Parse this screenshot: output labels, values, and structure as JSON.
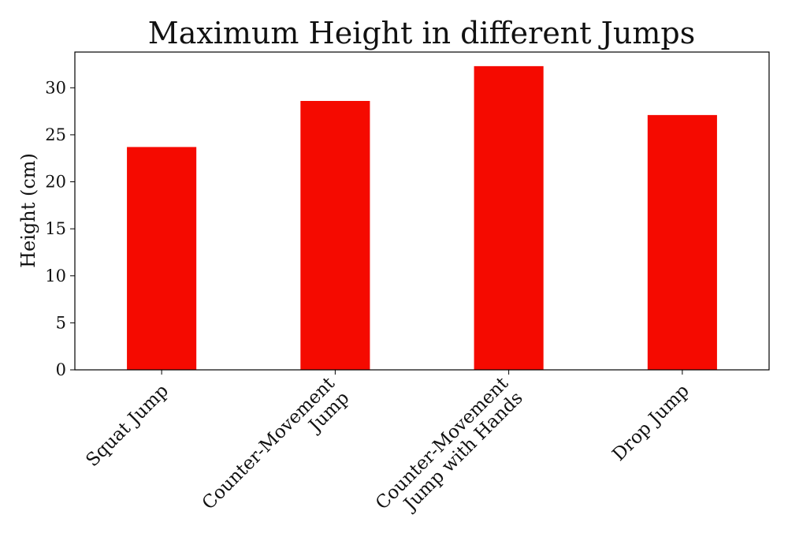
{
  "chart_data": {
    "type": "bar",
    "title": "Maximum Height in different Jumps",
    "xlabel": "",
    "ylabel": "Height (cm)",
    "categories": [
      [
        "Squat Jump"
      ],
      [
        "Counter-Movement",
        "Jump"
      ],
      [
        "Counter-Movement",
        "Jump with Hands"
      ],
      [
        "Drop Jump"
      ]
    ],
    "values": [
      23.7,
      28.6,
      32.3,
      27.1
    ],
    "ylim": [
      0,
      33.8
    ],
    "yticks": [
      0,
      5,
      10,
      15,
      20,
      25,
      30
    ],
    "bar_color": "#f50a00",
    "grid": false,
    "legend": "none"
  }
}
